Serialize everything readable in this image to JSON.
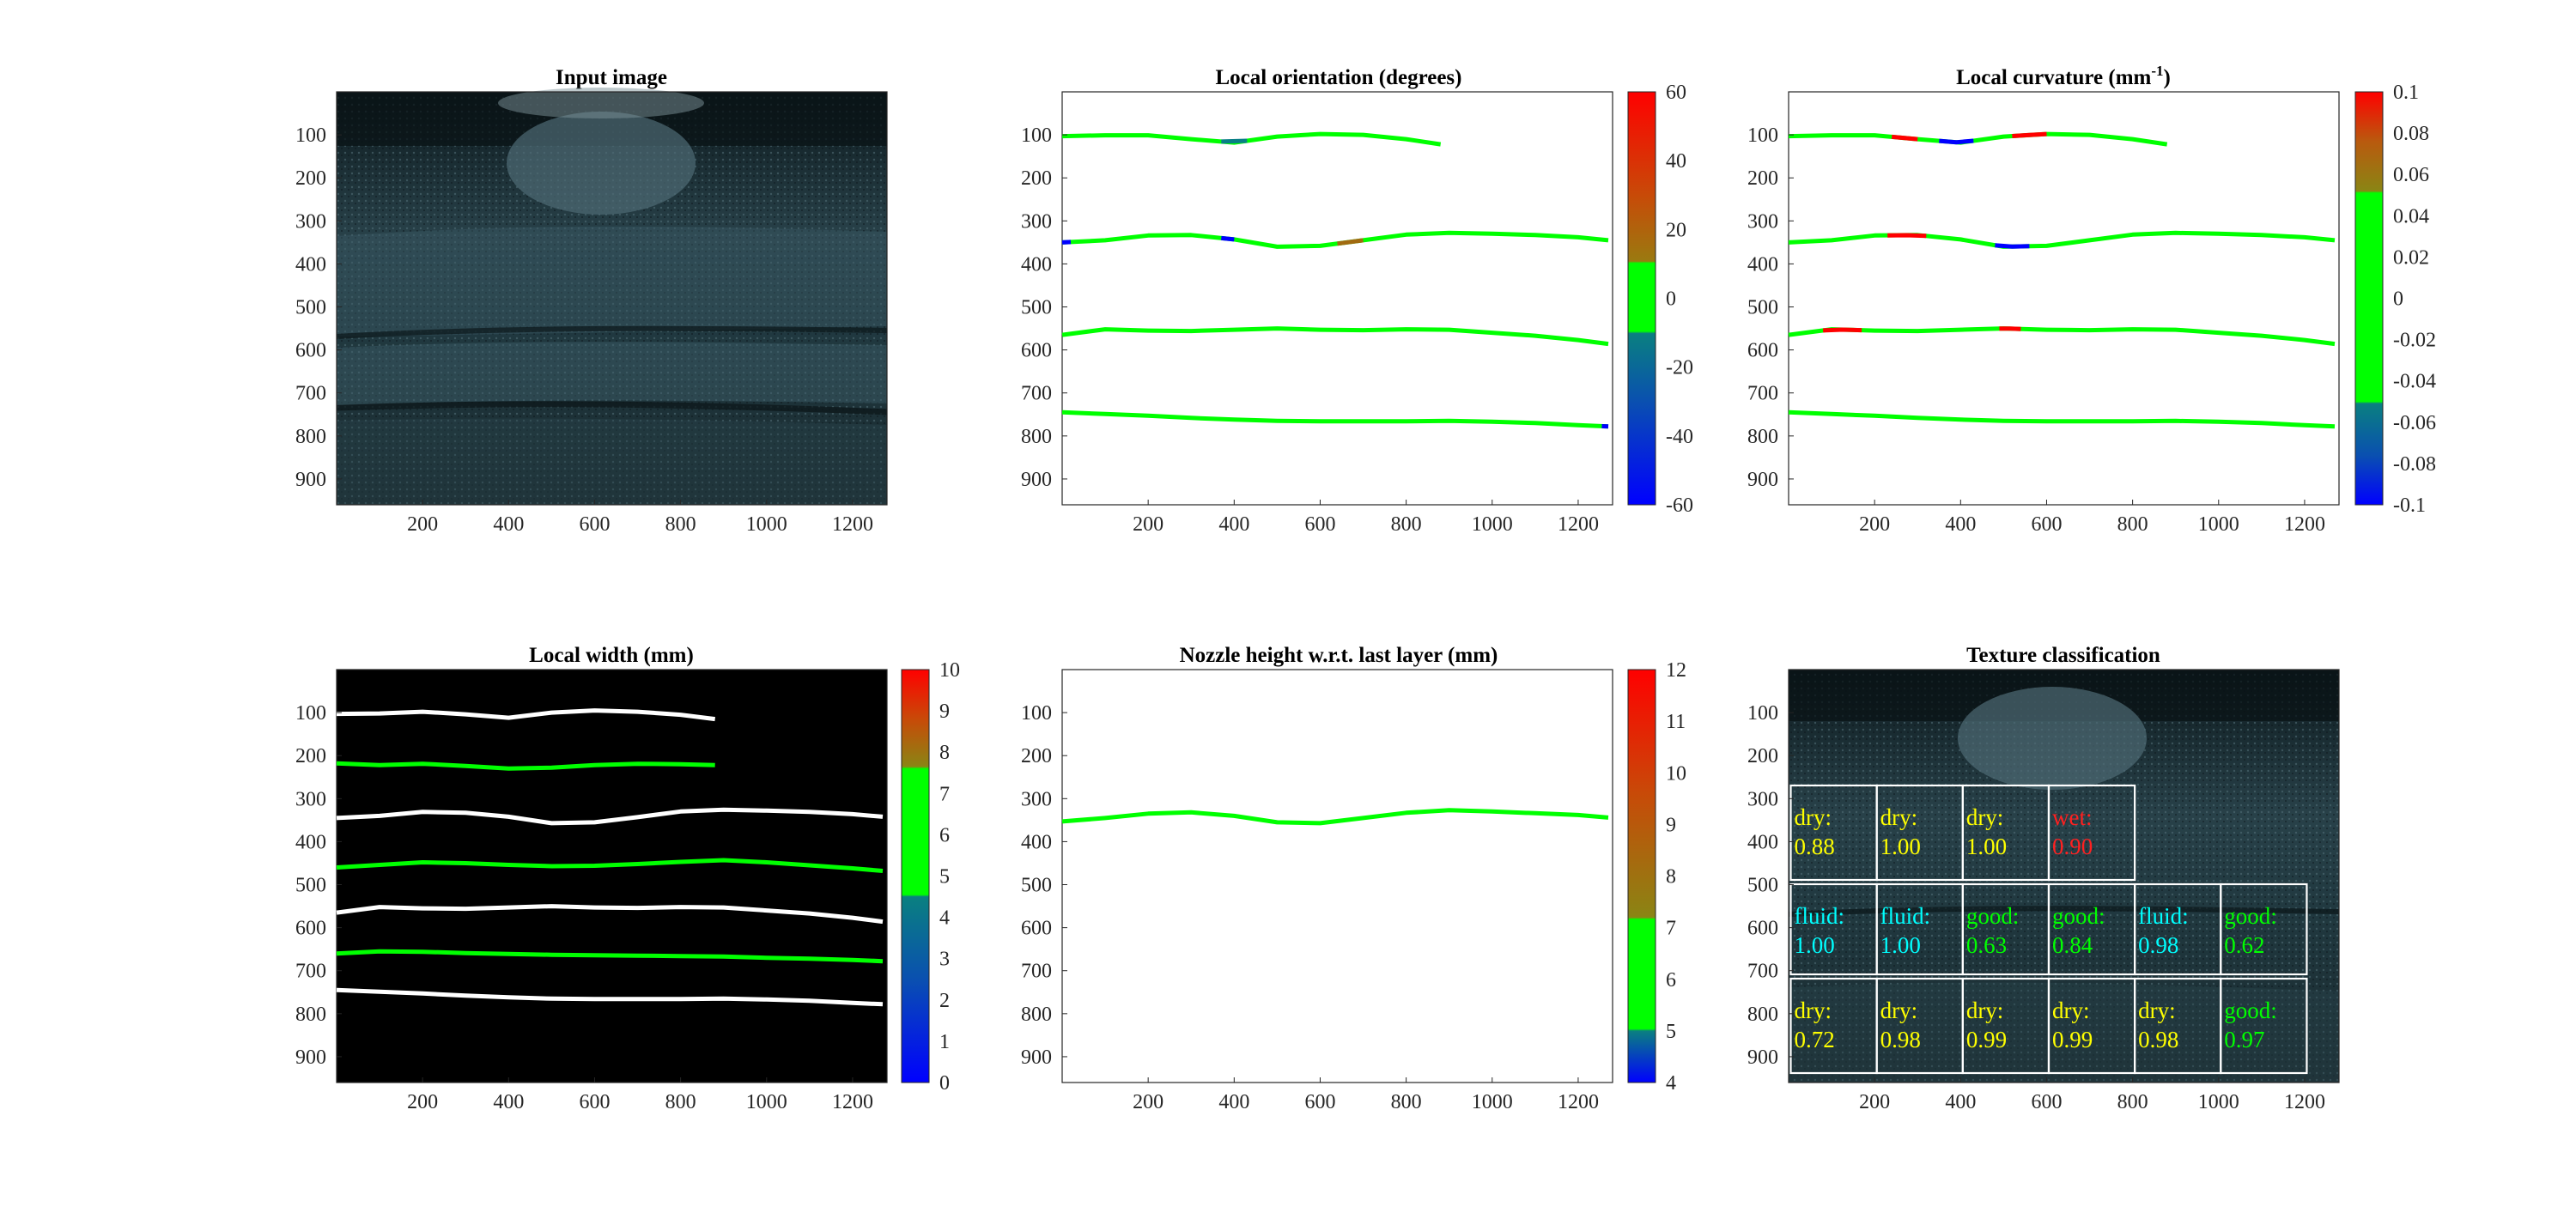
{
  "panels": [
    {
      "id": "input",
      "title": "Input image"
    },
    {
      "id": "orientation",
      "title": "Local orientation (degrees)"
    },
    {
      "id": "curvature",
      "title_main": "Local curvature (mm",
      "title_sup": "-1",
      "title_end": ")"
    },
    {
      "id": "width",
      "title": "Local width (mm)"
    },
    {
      "id": "nozzle",
      "title": "Nozzle height w.r.t. last layer (mm)"
    },
    {
      "id": "texture",
      "title": "Texture classification"
    }
  ],
  "axes": {
    "x_ticks": [
      "200",
      "400",
      "600",
      "800",
      "1000",
      "1200"
    ],
    "y_ticks": [
      "100",
      "200",
      "300",
      "400",
      "500",
      "600",
      "700",
      "800",
      "900"
    ],
    "xlim": [
      0,
      1280
    ],
    "ylim": [
      960,
      0
    ]
  },
  "colorbars": {
    "orientation": [
      "60",
      "40",
      "20",
      "0",
      "-20",
      "-40",
      "-60"
    ],
    "curvature": [
      "0.1",
      "0.08",
      "0.06",
      "0.04",
      "0.02",
      "0",
      "-0.02",
      "-0.04",
      "-0.06",
      "-0.08",
      "-0.1"
    ],
    "width": [
      "10",
      "9",
      "8",
      "7",
      "6",
      "5",
      "4",
      "3",
      "2",
      "1",
      "0"
    ],
    "nozzle": [
      "12",
      "11",
      "10",
      "9",
      "8",
      "7",
      "6",
      "5",
      "4"
    ]
  },
  "colors": {
    "red": "#ff0000",
    "brown": "#a16a10",
    "green": "#00ff00",
    "teal": "#0a7f86",
    "blue": "#0000ff",
    "label_dry": "#ffff00",
    "label_fluid": "#00ffff",
    "label_good": "#00ff00",
    "label_wet": "#ff2020"
  },
  "chart_data": {
    "type": "image-panels",
    "orientation_layers": [
      {
        "x": [
          0,
          100,
          200,
          300,
          400,
          500,
          600,
          700,
          800,
          880
        ],
        "y": [
          103,
          101,
          101,
          110,
          118,
          104,
          98,
          100,
          110,
          122
        ]
      },
      {
        "x": [
          0,
          100,
          200,
          300,
          400,
          500,
          600,
          700,
          800,
          900,
          1000,
          1100,
          1200,
          1270
        ],
        "y": [
          350,
          345,
          334,
          333,
          343,
          360,
          358,
          345,
          332,
          328,
          330,
          333,
          338,
          345
        ]
      },
      {
        "x": [
          0,
          100,
          200,
          300,
          400,
          500,
          600,
          700,
          800,
          900,
          1000,
          1100,
          1200,
          1270
        ],
        "y": [
          565,
          552,
          555,
          556,
          553,
          550,
          553,
          554,
          552,
          553,
          560,
          567,
          577,
          586
        ]
      },
      {
        "x": [
          0,
          100,
          200,
          300,
          400,
          500,
          600,
          700,
          800,
          900,
          1000,
          1100,
          1200,
          1270
        ],
        "y": [
          745,
          749,
          753,
          758,
          762,
          765,
          766,
          766,
          766,
          765,
          767,
          770,
          775,
          778
        ]
      }
    ],
    "width_layers": [
      {
        "x": [
          0,
          100,
          200,
          300,
          400,
          500,
          600,
          700,
          800,
          880
        ],
        "y": [
          103,
          102,
          98,
          104,
          112,
          100,
          95,
          98,
          105,
          115
        ],
        "color": "white"
      },
      {
        "x": [
          0,
          100,
          200,
          300,
          400,
          500,
          600,
          700,
          800,
          880
        ],
        "y": [
          218,
          222,
          219,
          224,
          230,
          228,
          222,
          219,
          220,
          222
        ],
        "color": "green"
      },
      {
        "x": [
          0,
          100,
          200,
          300,
          400,
          500,
          600,
          700,
          800,
          900,
          1000,
          1100,
          1200,
          1270
        ],
        "y": [
          345,
          340,
          331,
          333,
          342,
          357,
          355,
          343,
          330,
          326,
          328,
          331,
          336,
          342
        ],
        "color": "white"
      },
      {
        "x": [
          0,
          100,
          200,
          300,
          400,
          500,
          600,
          700,
          800,
          900,
          1000,
          1100,
          1200,
          1270
        ],
        "y": [
          460,
          454,
          448,
          450,
          454,
          457,
          456,
          452,
          447,
          443,
          448,
          455,
          462,
          468
        ],
        "color": "green"
      },
      {
        "x": [
          0,
          100,
          200,
          300,
          400,
          500,
          600,
          700,
          800,
          900,
          1000,
          1100,
          1200,
          1270
        ],
        "y": [
          565,
          552,
          555,
          556,
          553,
          550,
          553,
          554,
          552,
          553,
          560,
          567,
          577,
          586
        ],
        "color": "white"
      },
      {
        "x": [
          0,
          100,
          200,
          300,
          400,
          500,
          600,
          700,
          800,
          900,
          1000,
          1100,
          1200,
          1270
        ],
        "y": [
          660,
          655,
          656,
          659,
          661,
          663,
          664,
          665,
          666,
          667,
          670,
          672,
          675,
          678
        ],
        "color": "green"
      },
      {
        "x": [
          0,
          100,
          200,
          300,
          400,
          500,
          600,
          700,
          800,
          900,
          1000,
          1100,
          1200,
          1270
        ],
        "y": [
          745,
          749,
          753,
          758,
          762,
          765,
          766,
          766,
          766,
          765,
          767,
          770,
          775,
          778
        ],
        "color": "white"
      }
    ],
    "nozzle_line": {
      "x": [
        0,
        100,
        200,
        300,
        400,
        500,
        600,
        700,
        800,
        900,
        1000,
        1100,
        1200,
        1270
      ],
      "y": [
        353,
        345,
        335,
        332,
        340,
        355,
        357,
        345,
        333,
        327,
        330,
        334,
        338,
        344
      ],
      "value": 6.5
    },
    "texture_cells": [
      {
        "label": "dry:",
        "value": "0.88",
        "cls": "dry",
        "row": 0,
        "col": 0
      },
      {
        "label": "dry:",
        "value": "1.00",
        "cls": "dry",
        "row": 0,
        "col": 1
      },
      {
        "label": "dry:",
        "value": "1.00",
        "cls": "dry",
        "row": 0,
        "col": 2
      },
      {
        "label": "wet:",
        "value": "0.90",
        "cls": "wet",
        "row": 0,
        "col": 3
      },
      {
        "label": "fluid:",
        "value": "1.00",
        "cls": "fluid",
        "row": 1,
        "col": 0
      },
      {
        "label": "fluid:",
        "value": "1.00",
        "cls": "fluid",
        "row": 1,
        "col": 1
      },
      {
        "label": "good:",
        "value": "0.63",
        "cls": "good",
        "row": 1,
        "col": 2
      },
      {
        "label": "good:",
        "value": "0.84",
        "cls": "good",
        "row": 1,
        "col": 3
      },
      {
        "label": "fluid:",
        "value": "0.98",
        "cls": "fluid",
        "row": 1,
        "col": 4
      },
      {
        "label": "good:",
        "value": "0.62",
        "cls": "good",
        "row": 1,
        "col": 5
      },
      {
        "label": "dry:",
        "value": "0.72",
        "cls": "dry",
        "row": 2,
        "col": 0
      },
      {
        "label": "dry:",
        "value": "0.98",
        "cls": "dry",
        "row": 2,
        "col": 1
      },
      {
        "label": "dry:",
        "value": "0.99",
        "cls": "dry",
        "row": 2,
        "col": 2
      },
      {
        "label": "dry:",
        "value": "0.99",
        "cls": "dry",
        "row": 2,
        "col": 3
      },
      {
        "label": "dry:",
        "value": "0.98",
        "cls": "dry",
        "row": 2,
        "col": 4
      },
      {
        "label": "good:",
        "value": "0.97",
        "cls": "good",
        "row": 2,
        "col": 5
      }
    ]
  }
}
